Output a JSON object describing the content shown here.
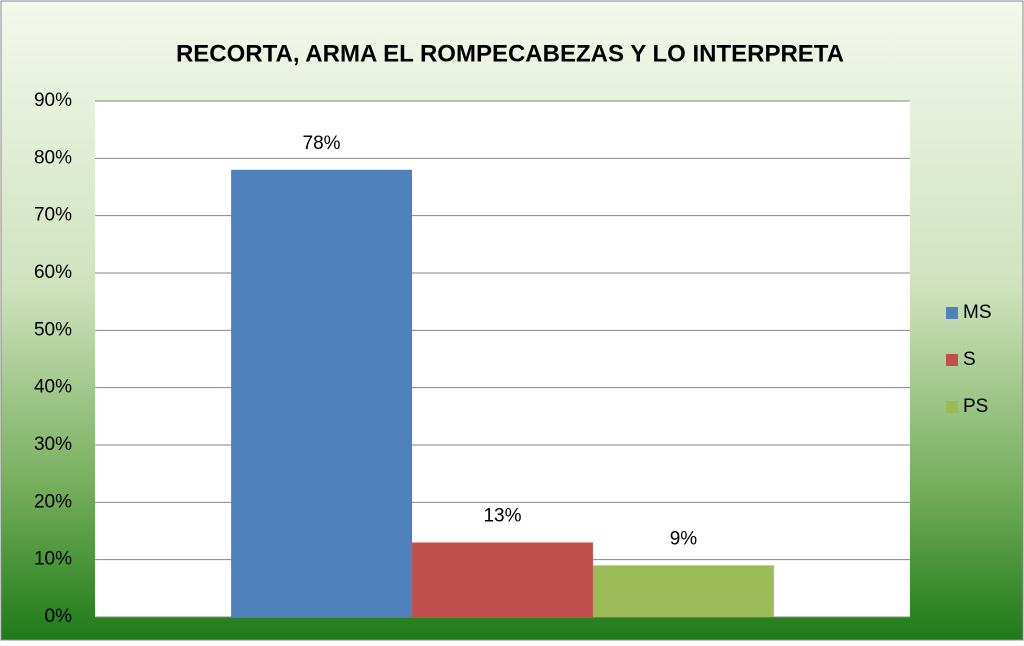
{
  "chart_data": {
    "type": "bar",
    "title": "RECORTA, ARMA EL ROMPECABEZAS Y LO INTERPRETA",
    "categories": [
      null
    ],
    "series": [
      {
        "name": "MS",
        "color": "#4f81bd",
        "values": [
          78
        ],
        "value_labels": [
          "78%"
        ]
      },
      {
        "name": "S",
        "color": "#c0504d",
        "values": [
          13
        ],
        "value_labels": [
          "13%"
        ]
      },
      {
        "name": "PS",
        "color": "#9bbb59",
        "values": [
          9
        ],
        "value_labels": [
          "9%"
        ]
      }
    ],
    "ylim": [
      0,
      90
    ],
    "yticks": [
      {
        "value": 0,
        "label": "0%"
      },
      {
        "value": 10,
        "label": "10%"
      },
      {
        "value": 20,
        "label": "20%"
      },
      {
        "value": 30,
        "label": "30%"
      },
      {
        "value": 40,
        "label": "40%"
      },
      {
        "value": 50,
        "label": "50%"
      },
      {
        "value": 60,
        "label": "60%"
      },
      {
        "value": 70,
        "label": "70%"
      },
      {
        "value": 80,
        "label": "80%"
      },
      {
        "value": 90,
        "label": "90%"
      }
    ],
    "grid": true,
    "legend": "right"
  }
}
